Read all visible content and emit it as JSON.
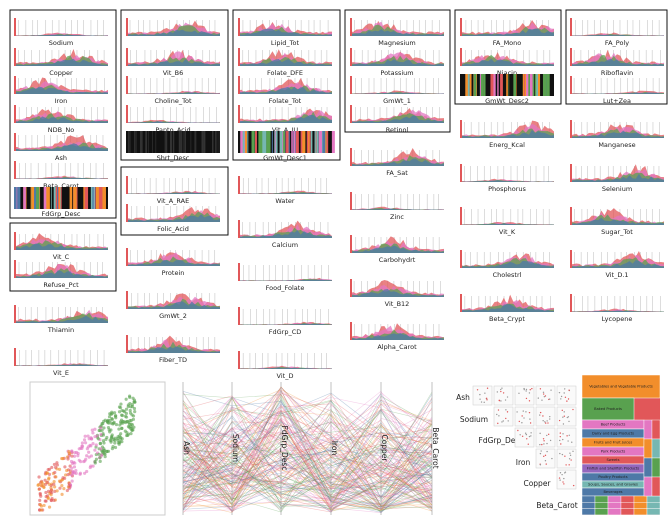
{
  "histograms": [
    "Sodium",
    "Copper",
    "Iron",
    "NDB_No",
    "Ash",
    "Beta_Carot",
    "FdGrp_Desc",
    "Vit_C",
    "Refuse_Pct",
    "Thiamin",
    "Vit_E",
    "Vit_B6",
    "Choline_Tot",
    "Panto_Acid",
    "Shrt_Desc",
    "Vit_A_RAE",
    "Folic_Acid",
    "Protein",
    "GmWt_2",
    "Fiber_TD",
    "Lipid_Tot",
    "Folate_DFE",
    "Folate_Tot",
    "Vit_A_IU",
    "GmWt_Desc1",
    "Water",
    "Calcium",
    "Food_Folate",
    "FdGrp_CD",
    "Vit_D",
    "Magnesium",
    "Potassium",
    "GmWt_1",
    "Retinol",
    "FA_Sat",
    "Zinc",
    "Carbohydrt",
    "Vit_B12",
    "Alpha_Carot",
    "FA_Mono",
    "Niacin",
    "GmWt_Desc2",
    "Energ_Kcal",
    "Phosphorus",
    "Vit_K",
    "Cholestrl",
    "Beta_Crypt",
    "FA_Poly",
    "Riboflavin",
    "Lut+Zea",
    "Manganese",
    "Selenium",
    "Sugar_Tot",
    "Vit_D.1",
    "Lycopene"
  ],
  "parallel_axes": [
    "Ash",
    "Sodium",
    "FdGrp_Desc",
    "Iron",
    "Copper",
    "Beta_Carot"
  ],
  "matrix_labels": [
    "Ash",
    "Sodium",
    "FdGrp_Desc",
    "Iron",
    "Copper",
    "Beta_Carot"
  ],
  "treemap": [
    "Vegetables and Vegetable Products",
    "Baked Products",
    "Beef Products",
    "Dairy and Egg Products",
    "Fruits and Fruit Juices",
    "Pork Products",
    "Sweets",
    "Finfish and Shellfish Products",
    "Poultry Products",
    "Soups, Sauces, and Gravies",
    "Beverages"
  ]
}
